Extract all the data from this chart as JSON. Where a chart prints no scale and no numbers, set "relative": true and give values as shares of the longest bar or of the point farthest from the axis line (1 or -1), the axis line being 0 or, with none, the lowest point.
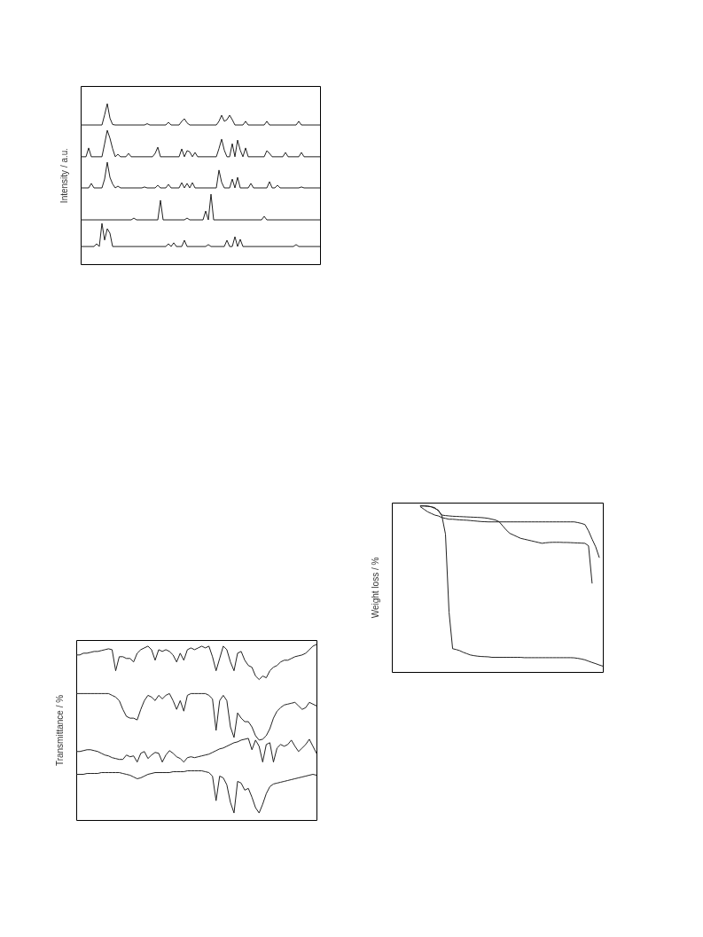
{
  "chart_data": [
    {
      "type": "line",
      "ylabel": "Intensity / a.u.",
      "relative": true,
      "categories": [
        null,
        null,
        null,
        null,
        null,
        null,
        null,
        null,
        null,
        null,
        null,
        null,
        null,
        null,
        null,
        null,
        null,
        null,
        null,
        null,
        null,
        null,
        null,
        null,
        null,
        null,
        null,
        null,
        null,
        null,
        null,
        null,
        null,
        null,
        null,
        null,
        null,
        null,
        null,
        null,
        null,
        null,
        null,
        null,
        null,
        null,
        null,
        null,
        null,
        null,
        null,
        null,
        null,
        null,
        null,
        null,
        null,
        null,
        null,
        null,
        null,
        null,
        null,
        null,
        null,
        null,
        null,
        null,
        null,
        null,
        null,
        null,
        null,
        null,
        null,
        null,
        null,
        null,
        null,
        null,
        null,
        null,
        null,
        null,
        null,
        null,
        null,
        null,
        null,
        null,
        null
      ],
      "series": [
        {
          "color": "#222222",
          "values": [
            0.867,
            0.867,
            0.867,
            0.867,
            0.867,
            0.867,
            0.867,
            0.867,
            0.867,
            0.93,
            1.0,
            0.91,
            0.87,
            0.867,
            0.867,
            0.867,
            0.867,
            0.867,
            0.867,
            0.867,
            0.867,
            0.867,
            0.867,
            0.867,
            0.867,
            0.875,
            0.867,
            0.867,
            0.867,
            0.867,
            0.867,
            0.867,
            0.867,
            0.884,
            0.867,
            0.867,
            0.867,
            0.867,
            0.89,
            0.906,
            0.88,
            0.867,
            0.867,
            0.867,
            0.867,
            0.867,
            0.867,
            0.867,
            0.867,
            0.867,
            0.867,
            0.867,
            0.89,
            0.928,
            0.89,
            0.9,
            0.928,
            0.9,
            0.867,
            0.867,
            0.867,
            0.867,
            0.89,
            0.867,
            0.867,
            0.867,
            0.867,
            0.867,
            0.867,
            0.867,
            0.89,
            0.867,
            0.867,
            0.867,
            0.867,
            0.867,
            0.867,
            0.867,
            0.867,
            0.867,
            0.867,
            0.867,
            0.89,
            0.867,
            0.867,
            0.867,
            0.867,
            0.867,
            0.867,
            0.867,
            0.867
          ]
        },
        {
          "color": "#222222",
          "values": [
            0.669,
            0.669,
            0.669,
            0.724,
            0.669,
            0.669,
            0.669,
            0.669,
            0.669,
            0.75,
            0.834,
            0.785,
            0.72,
            0.669,
            0.685,
            0.669,
            0.669,
            0.669,
            0.69,
            0.669,
            0.669,
            0.669,
            0.669,
            0.669,
            0.669,
            0.669,
            0.669,
            0.669,
            0.69,
            0.729,
            0.669,
            0.669,
            0.669,
            0.669,
            0.669,
            0.669,
            0.669,
            0.669,
            0.718,
            0.669,
            0.707,
            0.7,
            0.669,
            0.696,
            0.669,
            0.669,
            0.669,
            0.669,
            0.669,
            0.669,
            0.669,
            0.669,
            0.72,
            0.779,
            0.71,
            0.669,
            0.669,
            0.751,
            0.669,
            0.773,
            0.71,
            0.669,
            0.724,
            0.669,
            0.669,
            0.669,
            0.669,
            0.669,
            0.669,
            0.669,
            0.707,
            0.69,
            0.669,
            0.669,
            0.669,
            0.669,
            0.669,
            0.696,
            0.669,
            0.669,
            0.669,
            0.669,
            0.669,
            0.696,
            0.669,
            0.669,
            0.669,
            0.669,
            0.669,
            0.669,
            0.669
          ]
        },
        {
          "color": "#222222",
          "values": [
            0.475,
            0.475,
            0.475,
            0.475,
            0.503,
            0.475,
            0.475,
            0.475,
            0.475,
            0.53,
            0.635,
            0.541,
            0.5,
            0.475,
            0.486,
            0.475,
            0.475,
            0.475,
            0.475,
            0.475,
            0.475,
            0.475,
            0.475,
            0.475,
            0.481,
            0.475,
            0.475,
            0.475,
            0.475,
            0.492,
            0.475,
            0.475,
            0.475,
            0.497,
            0.475,
            0.475,
            0.475,
            0.475,
            0.508,
            0.475,
            0.503,
            0.475,
            0.508,
            0.475,
            0.475,
            0.475,
            0.475,
            0.475,
            0.475,
            0.475,
            0.475,
            0.475,
            0.586,
            0.51,
            0.475,
            0.475,
            0.475,
            0.53,
            0.475,
            0.541,
            0.475,
            0.475,
            0.475,
            0.475,
            0.503,
            0.475,
            0.475,
            0.475,
            0.475,
            0.475,
            0.475,
            0.514,
            0.475,
            0.475,
            0.492,
            0.475,
            0.475,
            0.475,
            0.475,
            0.475,
            0.475,
            0.475,
            0.475,
            0.481,
            0.475,
            0.475,
            0.475,
            0.475,
            0.475,
            0.475,
            0.475
          ]
        },
        {
          "color": "#222222",
          "values": [
            0.276,
            0.276,
            0.276,
            0.276,
            0.276,
            0.276,
            0.276,
            0.276,
            0.276,
            0.276,
            0.276,
            0.276,
            0.276,
            0.276,
            0.276,
            0.276,
            0.276,
            0.276,
            0.276,
            0.276,
            0.287,
            0.276,
            0.276,
            0.276,
            0.276,
            0.276,
            0.276,
            0.276,
            0.276,
            0.276,
            0.398,
            0.276,
            0.276,
            0.276,
            0.276,
            0.276,
            0.276,
            0.276,
            0.276,
            0.276,
            0.287,
            0.276,
            0.276,
            0.276,
            0.276,
            0.276,
            0.276,
            0.331,
            0.276,
            0.436,
            0.276,
            0.276,
            0.276,
            0.276,
            0.276,
            0.276,
            0.276,
            0.276,
            0.276,
            0.276,
            0.276,
            0.276,
            0.276,
            0.276,
            0.276,
            0.276,
            0.276,
            0.276,
            0.276,
            0.298,
            0.276,
            0.276,
            0.276,
            0.276,
            0.276,
            0.276,
            0.276,
            0.276,
            0.276,
            0.276,
            0.276,
            0.276,
            0.276,
            0.276,
            0.276,
            0.276,
            0.276,
            0.276,
            0.276,
            0.276,
            0.276
          ]
        },
        {
          "color": "#222222",
          "values": [
            0.11,
            0.11,
            0.11,
            0.11,
            0.11,
            0.11,
            0.127,
            0.11,
            0.254,
            0.15,
            0.221,
            0.193,
            0.11,
            0.11,
            0.11,
            0.11,
            0.11,
            0.11,
            0.11,
            0.11,
            0.11,
            0.11,
            0.11,
            0.11,
            0.11,
            0.11,
            0.11,
            0.11,
            0.11,
            0.11,
            0.11,
            0.11,
            0.11,
            0.127,
            0.11,
            0.133,
            0.11,
            0.11,
            0.11,
            0.149,
            0.11,
            0.11,
            0.11,
            0.11,
            0.11,
            0.11,
            0.11,
            0.11,
            0.122,
            0.11,
            0.11,
            0.11,
            0.11,
            0.11,
            0.11,
            0.149,
            0.11,
            0.11,
            0.171,
            0.11,
            0.155,
            0.11,
            0.11,
            0.11,
            0.11,
            0.11,
            0.11,
            0.11,
            0.11,
            0.11,
            0.11,
            0.11,
            0.11,
            0.11,
            0.11,
            0.11,
            0.11,
            0.11,
            0.11,
            0.11,
            0.11,
            0.122,
            0.11,
            0.11,
            0.11,
            0.11,
            0.11,
            0.11,
            0.11,
            0.11,
            0.11
          ]
        }
      ]
    },
    {
      "type": "line",
      "ylabel": "Transmittance / %",
      "relative": true,
      "categories": [
        null,
        null,
        null,
        null,
        null,
        null,
        null,
        null,
        null,
        null,
        null,
        null,
        null,
        null,
        null,
        null,
        null,
        null,
        null,
        null,
        null,
        null,
        null,
        null,
        null,
        null,
        null,
        null,
        null,
        null,
        null,
        null,
        null,
        null,
        null,
        null,
        null,
        null,
        null,
        null,
        null,
        null,
        null,
        null,
        null,
        null,
        null,
        null,
        null,
        null,
        null,
        null,
        null,
        null,
        null,
        null,
        null,
        null,
        null,
        null,
        null,
        null,
        null,
        null,
        null,
        null,
        null,
        null
      ],
      "series": [
        {
          "color": "#222222",
          "values": [
            0.94,
            0.94,
            0.95,
            0.95,
            0.955,
            0.96,
            0.96,
            0.965,
            0.97,
            0.975,
            0.97,
            0.85,
            0.93,
            0.93,
            0.92,
            0.92,
            0.9,
            0.95,
            0.97,
            0.98,
            0.99,
            0.97,
            0.91,
            0.97,
            0.96,
            0.97,
            0.96,
            0.94,
            0.9,
            0.95,
            0.91,
            0.97,
            0.98,
            0.97,
            0.98,
            0.99,
            0.98,
            0.99,
            0.93,
            0.85,
            0.92,
            0.99,
            0.97,
            0.9,
            0.85,
            0.95,
            0.96,
            0.91,
            0.88,
            0.87,
            0.82,
            0.8,
            0.82,
            0.81,
            0.85,
            0.87,
            0.88,
            0.9,
            0.91,
            0.91,
            0.92,
            0.93,
            0.935,
            0.94,
            0.95,
            0.97,
            0.99,
            1.0
          ]
        },
        {
          "color": "#222222",
          "values": [
            0.72,
            0.72,
            0.72,
            0.72,
            0.72,
            0.72,
            0.72,
            0.72,
            0.72,
            0.72,
            0.71,
            0.7,
            0.68,
            0.63,
            0.59,
            0.58,
            0.58,
            0.57,
            0.63,
            0.68,
            0.71,
            0.7,
            0.68,
            0.71,
            0.69,
            0.71,
            0.72,
            0.68,
            0.63,
            0.68,
            0.62,
            0.71,
            0.72,
            0.72,
            0.72,
            0.72,
            0.72,
            0.71,
            0.69,
            0.51,
            0.68,
            0.71,
            0.68,
            0.53,
            0.47,
            0.61,
            0.58,
            0.56,
            0.56,
            0.53,
            0.48,
            0.455,
            0.46,
            0.48,
            0.52,
            0.58,
            0.62,
            0.64,
            0.655,
            0.66,
            0.665,
            0.67,
            0.65,
            0.63,
            0.64,
            0.67,
            0.66,
            0.65
          ]
        },
        {
          "color": "#222222",
          "values": [
            0.39,
            0.39,
            0.395,
            0.4,
            0.4,
            0.395,
            0.39,
            0.38,
            0.37,
            0.365,
            0.355,
            0.35,
            0.345,
            0.345,
            0.37,
            0.36,
            0.365,
            0.33,
            0.38,
            0.39,
            0.35,
            0.37,
            0.385,
            0.38,
            0.33,
            0.37,
            0.395,
            0.38,
            0.36,
            0.35,
            0.33,
            0.355,
            0.36,
            0.355,
            0.36,
            0.365,
            0.37,
            0.375,
            0.385,
            0.395,
            0.405,
            0.41,
            0.42,
            0.43,
            0.44,
            0.445,
            0.455,
            0.46,
            0.465,
            0.4,
            0.455,
            0.42,
            0.33,
            0.43,
            0.44,
            0.33,
            0.41,
            0.43,
            0.42,
            0.43,
            0.455,
            0.42,
            0.39,
            0.41,
            0.43,
            0.46,
            0.42,
            0.38
          ]
        },
        {
          "color": "#222222",
          "values": [
            0.26,
            0.26,
            0.26,
            0.265,
            0.265,
            0.265,
            0.265,
            0.27,
            0.27,
            0.27,
            0.27,
            0.27,
            0.27,
            0.265,
            0.26,
            0.255,
            0.245,
            0.235,
            0.24,
            0.25,
            0.26,
            0.265,
            0.27,
            0.27,
            0.27,
            0.27,
            0.27,
            0.275,
            0.275,
            0.275,
            0.275,
            0.28,
            0.28,
            0.28,
            0.28,
            0.28,
            0.275,
            0.27,
            0.25,
            0.11,
            0.25,
            0.24,
            0.2,
            0.1,
            0.04,
            0.22,
            0.21,
            0.17,
            0.18,
            0.13,
            0.07,
            0.04,
            0.09,
            0.15,
            0.19,
            0.205,
            0.21,
            0.215,
            0.22,
            0.225,
            0.23,
            0.235,
            0.24,
            0.245,
            0.25,
            0.255,
            0.26,
            0.255
          ]
        }
      ]
    },
    {
      "type": "line",
      "ylabel": "Weight loss / %",
      "relative": true,
      "categories": [
        null,
        null,
        null,
        null,
        null,
        null,
        null,
        null,
        null,
        null,
        null,
        null,
        null,
        null,
        null,
        null,
        null,
        null,
        null,
        null,
        null,
        null,
        null,
        null,
        null,
        null,
        null,
        null,
        null,
        null,
        null,
        null,
        null,
        null,
        null,
        null,
        null,
        null,
        null,
        null,
        null,
        null,
        null,
        null,
        null,
        null,
        null,
        null,
        null,
        null,
        null,
        null,
        null,
        null,
        null,
        null,
        null,
        null,
        null,
        null
      ],
      "series": [
        {
          "color": "#222222",
          "values": [
            null,
            null,
            null,
            null,
            null,
            null,
            null,
            null,
            1.0,
            1.0,
            1.0,
            0.995,
            0.985,
            0.975,
            0.94,
            0.83,
            0.36,
            0.14,
            0.135,
            0.128,
            0.118,
            0.11,
            0.102,
            0.098,
            0.095,
            0.093,
            0.092,
            0.091,
            0.088,
            0.088,
            0.088,
            0.088,
            0.088,
            0.088,
            0.088,
            0.088,
            0.088,
            0.086,
            0.086,
            0.086,
            0.086,
            0.086,
            0.086,
            0.086,
            0.086,
            0.086,
            0.086,
            0.086,
            0.086,
            0.086,
            0.086,
            0.085,
            0.082,
            0.078,
            0.073,
            0.065,
            0.057,
            0.05,
            0.042,
            0.035
          ]
        },
        {
          "color": "#222222",
          "values": [
            null,
            null,
            null,
            null,
            null,
            null,
            null,
            null,
            0.995,
            0.98,
            0.965,
            0.955,
            0.945,
            0.94,
            0.93,
            0.925,
            0.92,
            0.92,
            0.918,
            0.916,
            0.915,
            0.914,
            0.912,
            0.91,
            0.908,
            0.906,
            0.905,
            0.904,
            0.904,
            0.904,
            0.904,
            0.904,
            0.904,
            0.904,
            0.904,
            0.904,
            0.904,
            0.904,
            0.904,
            0.904,
            0.904,
            0.904,
            0.904,
            0.904,
            0.904,
            0.904,
            0.904,
            0.904,
            0.904,
            0.904,
            0.904,
            0.904,
            0.9,
            0.895,
            0.888,
            0.85,
            0.8,
            0.754,
            0.69,
            null
          ]
        },
        {
          "color": "#222222",
          "values": [
            null,
            null,
            null,
            null,
            null,
            null,
            null,
            null,
            1.0,
            1.0,
            0.997,
            0.995,
            0.99,
            0.97,
            0.945,
            0.942,
            0.94,
            0.938,
            0.937,
            0.936,
            0.935,
            0.934,
            0.933,
            0.932,
            0.931,
            0.93,
            0.928,
            0.925,
            0.92,
            0.915,
            0.905,
            0.88,
            0.855,
            0.835,
            0.825,
            0.815,
            0.805,
            0.8,
            0.795,
            0.79,
            0.785,
            0.78,
            0.775,
            0.778,
            0.78,
            0.781,
            0.781,
            0.781,
            0.78,
            0.78,
            0.779,
            0.778,
            0.777,
            0.776,
            0.775,
            0.76,
            0.535,
            null,
            null,
            null
          ]
        }
      ]
    }
  ]
}
